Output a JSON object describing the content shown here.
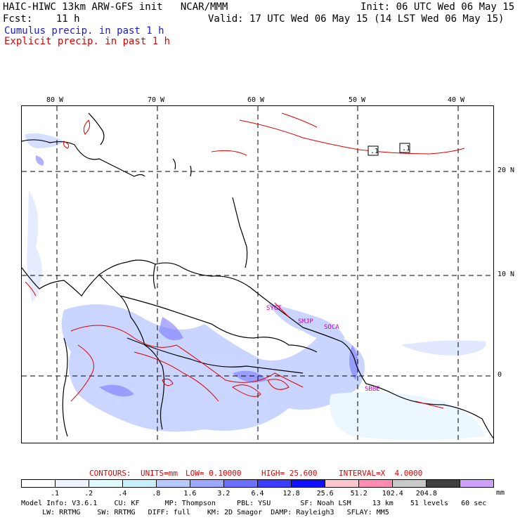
{
  "header": {
    "title": "HAIC-HIWC 13km ARW-GFS init   NCAR/MMM",
    "init": "Init: 06 UTC Wed 06 May 15",
    "fcst": "Fcst:    11 h",
    "valid": "Valid: 17 UTC Wed 06 May 15 (14 LST Wed 06 May 15)",
    "cumulus": "Cumulus precip. in past 1 h",
    "explicit": "Explicit precip. in past 1 h"
  },
  "map": {
    "lon_labels": [
      "80 W",
      "70 W",
      "60 W",
      "50 W",
      "40 W"
    ],
    "lat_labels": [
      "20 N",
      "10 N",
      "0"
    ],
    "cities": [
      "SBBE",
      "SMJP",
      "SOCA",
      "SYGT"
    ],
    "markers": [
      ".1",
      ".1"
    ]
  },
  "contours_line": {
    "contours": "CONTOURS:",
    "units": "UNITS=mm",
    "low": "LOW= 0.10000",
    "high": "HIGH= 25.600",
    "interval": "INTERVAL=X  4.0000"
  },
  "colorbar": {
    "ticks": [
      ".1",
      ".2",
      ".4",
      ".8",
      "1.6",
      "3.2",
      "6.4",
      "12.8",
      "25.6",
      "51.2",
      "102.4",
      "204.8"
    ],
    "unit": "mm",
    "colors": [
      "#ffffff",
      "#eef3ff",
      "#e0fbfb",
      "#c8f0f8",
      "#b8c8ff",
      "#9fa8ff",
      "#6f6fff",
      "#3c3cff",
      "#1010ff",
      "#ffc6ce",
      "#ff8cb0",
      "#c8c8c8",
      "#404040",
      "#d0a0ff"
    ]
  },
  "footer": {
    "line1": "Model Info: V3.6.1    CU: KF      MP: Thompson     PBL: YSU       SF: Noah LSM     13 km    51 levels   60 sec",
    "line2": "     LW: RRTMG    SW: RRTMG   DIFF: full    KM: 2D Smagor  DAMP: Rayleigh3   SFLAY: MM5"
  }
}
